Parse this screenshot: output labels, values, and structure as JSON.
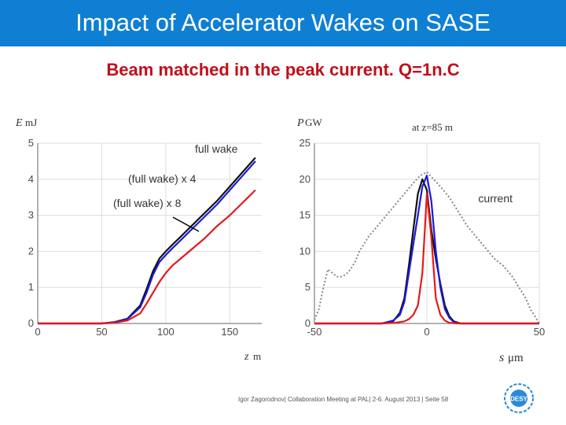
{
  "slide": {
    "title": "Impact of Accelerator Wakes on SASE",
    "subtitle": "Beam matched in the peak current. Q=1n.C",
    "footer": "Igor Zagorodnov| Collaboration Meeting at PAL| 2-6. August 2013 | Seite 58",
    "logo_text": "DESY"
  },
  "colors": {
    "title_bar": "#0f7fd3",
    "subtitle": "#c0101a",
    "series_black": "#111111",
    "series_blue": "#1a1adc",
    "series_red": "#e3191c",
    "series_current": "#888888"
  },
  "chart_data": [
    {
      "type": "line",
      "ylabel_symbol": "E",
      "ylabel_unit": "mJ",
      "xlabel_symbol": "z",
      "xlabel_unit": "m",
      "xlim": [
        0,
        175
      ],
      "ylim": [
        0,
        5
      ],
      "xticks": [
        0,
        50,
        100,
        150
      ],
      "yticks": [
        0,
        1,
        2,
        3,
        4,
        5
      ],
      "grid": true,
      "annotations": [
        "full wake",
        "(full wake) x  4",
        "(full wake) x  8"
      ],
      "series": [
        {
          "name": "full wake",
          "color": "#111111",
          "x": [
            0,
            50,
            60,
            70,
            80,
            85,
            90,
            95,
            100,
            105,
            110,
            120,
            130,
            140,
            150,
            160,
            170
          ],
          "y": [
            0,
            0,
            0.04,
            0.13,
            0.5,
            0.95,
            1.45,
            1.8,
            2.0,
            2.18,
            2.35,
            2.7,
            3.05,
            3.4,
            3.8,
            4.2,
            4.6
          ]
        },
        {
          "name": "(full wake) x  4",
          "color": "#1a1adc",
          "x": [
            0,
            50,
            60,
            70,
            80,
            85,
            90,
            95,
            100,
            105,
            110,
            120,
            130,
            140,
            150,
            160,
            170
          ],
          "y": [
            0,
            0,
            0.03,
            0.12,
            0.45,
            0.85,
            1.35,
            1.7,
            1.9,
            2.08,
            2.25,
            2.6,
            2.95,
            3.3,
            3.7,
            4.1,
            4.5
          ]
        },
        {
          "name": "(full wake) x  8",
          "color": "#e3191c",
          "x": [
            0,
            50,
            60,
            70,
            80,
            85,
            90,
            95,
            100,
            105,
            110,
            120,
            130,
            140,
            150,
            160,
            170
          ],
          "y": [
            0,
            0,
            0.02,
            0.08,
            0.28,
            0.55,
            0.85,
            1.15,
            1.4,
            1.6,
            1.75,
            2.05,
            2.35,
            2.7,
            3.0,
            3.35,
            3.7
          ]
        }
      ]
    },
    {
      "type": "line",
      "title": "at z=85 m",
      "ylabel_symbol": "P",
      "ylabel_unit": "GW",
      "xlabel_symbol": "s",
      "xlabel_unit": "μm",
      "xlim": [
        -50,
        50
      ],
      "ylim": [
        0,
        25
      ],
      "xticks": [
        -50,
        0,
        50
      ],
      "yticks": [
        0,
        5,
        10,
        15,
        20,
        25
      ],
      "grid": true,
      "annotations": [
        "current"
      ],
      "series": [
        {
          "name": "current",
          "color": "#888888",
          "dashed": true,
          "x": [
            -50,
            -48,
            -46,
            -44,
            -42,
            -40,
            -38,
            -36,
            -34,
            -32,
            -30,
            -26,
            -22,
            -18,
            -14,
            -10,
            -6,
            -3,
            0,
            3,
            6,
            10,
            14,
            18,
            22,
            26,
            30,
            34,
            38,
            42,
            44,
            46,
            48,
            50
          ],
          "y": [
            0.5,
            2,
            5,
            7.5,
            7,
            6.5,
            6.5,
            6.8,
            7.5,
            8.5,
            10,
            12,
            13.5,
            15,
            16.5,
            18,
            19.5,
            20.5,
            21,
            20,
            19,
            17.5,
            15.5,
            13.5,
            12,
            10.5,
            9,
            8,
            6.5,
            4.5,
            3.5,
            2,
            1,
            0
          ]
        },
        {
          "color": "#111111",
          "x": [
            -50,
            -20,
            -15,
            -12,
            -10,
            -8,
            -6,
            -4,
            -2,
            0,
            2,
            4,
            6,
            8,
            10,
            12,
            15,
            20,
            50
          ],
          "y": [
            0,
            0,
            0.3,
            1.5,
            3.5,
            8,
            13,
            18,
            20,
            18.5,
            13,
            9,
            5.5,
            2.5,
            1,
            0.3,
            0,
            0,
            0
          ]
        },
        {
          "color": "#1a1adc",
          "x": [
            -50,
            -20,
            -15,
            -12,
            -10,
            -8,
            -6,
            -4,
            -2,
            0,
            2,
            4,
            6,
            8,
            10,
            12,
            15,
            20,
            50
          ],
          "y": [
            0,
            0,
            0.4,
            1.2,
            3,
            7,
            11,
            15,
            19,
            20.5,
            17,
            10,
            5,
            2,
            0.8,
            0.2,
            0,
            0,
            0
          ]
        },
        {
          "color": "#e3191c",
          "x": [
            -50,
            -20,
            -14,
            -10,
            -8,
            -6,
            -4,
            -2,
            0,
            2,
            4,
            6,
            8,
            10,
            14,
            20,
            50
          ],
          "y": [
            0,
            0,
            0.1,
            0.3,
            0.6,
            1.2,
            2.5,
            7,
            18,
            12,
            3.5,
            1.2,
            0.4,
            0.1,
            0,
            0,
            0
          ]
        }
      ]
    }
  ]
}
